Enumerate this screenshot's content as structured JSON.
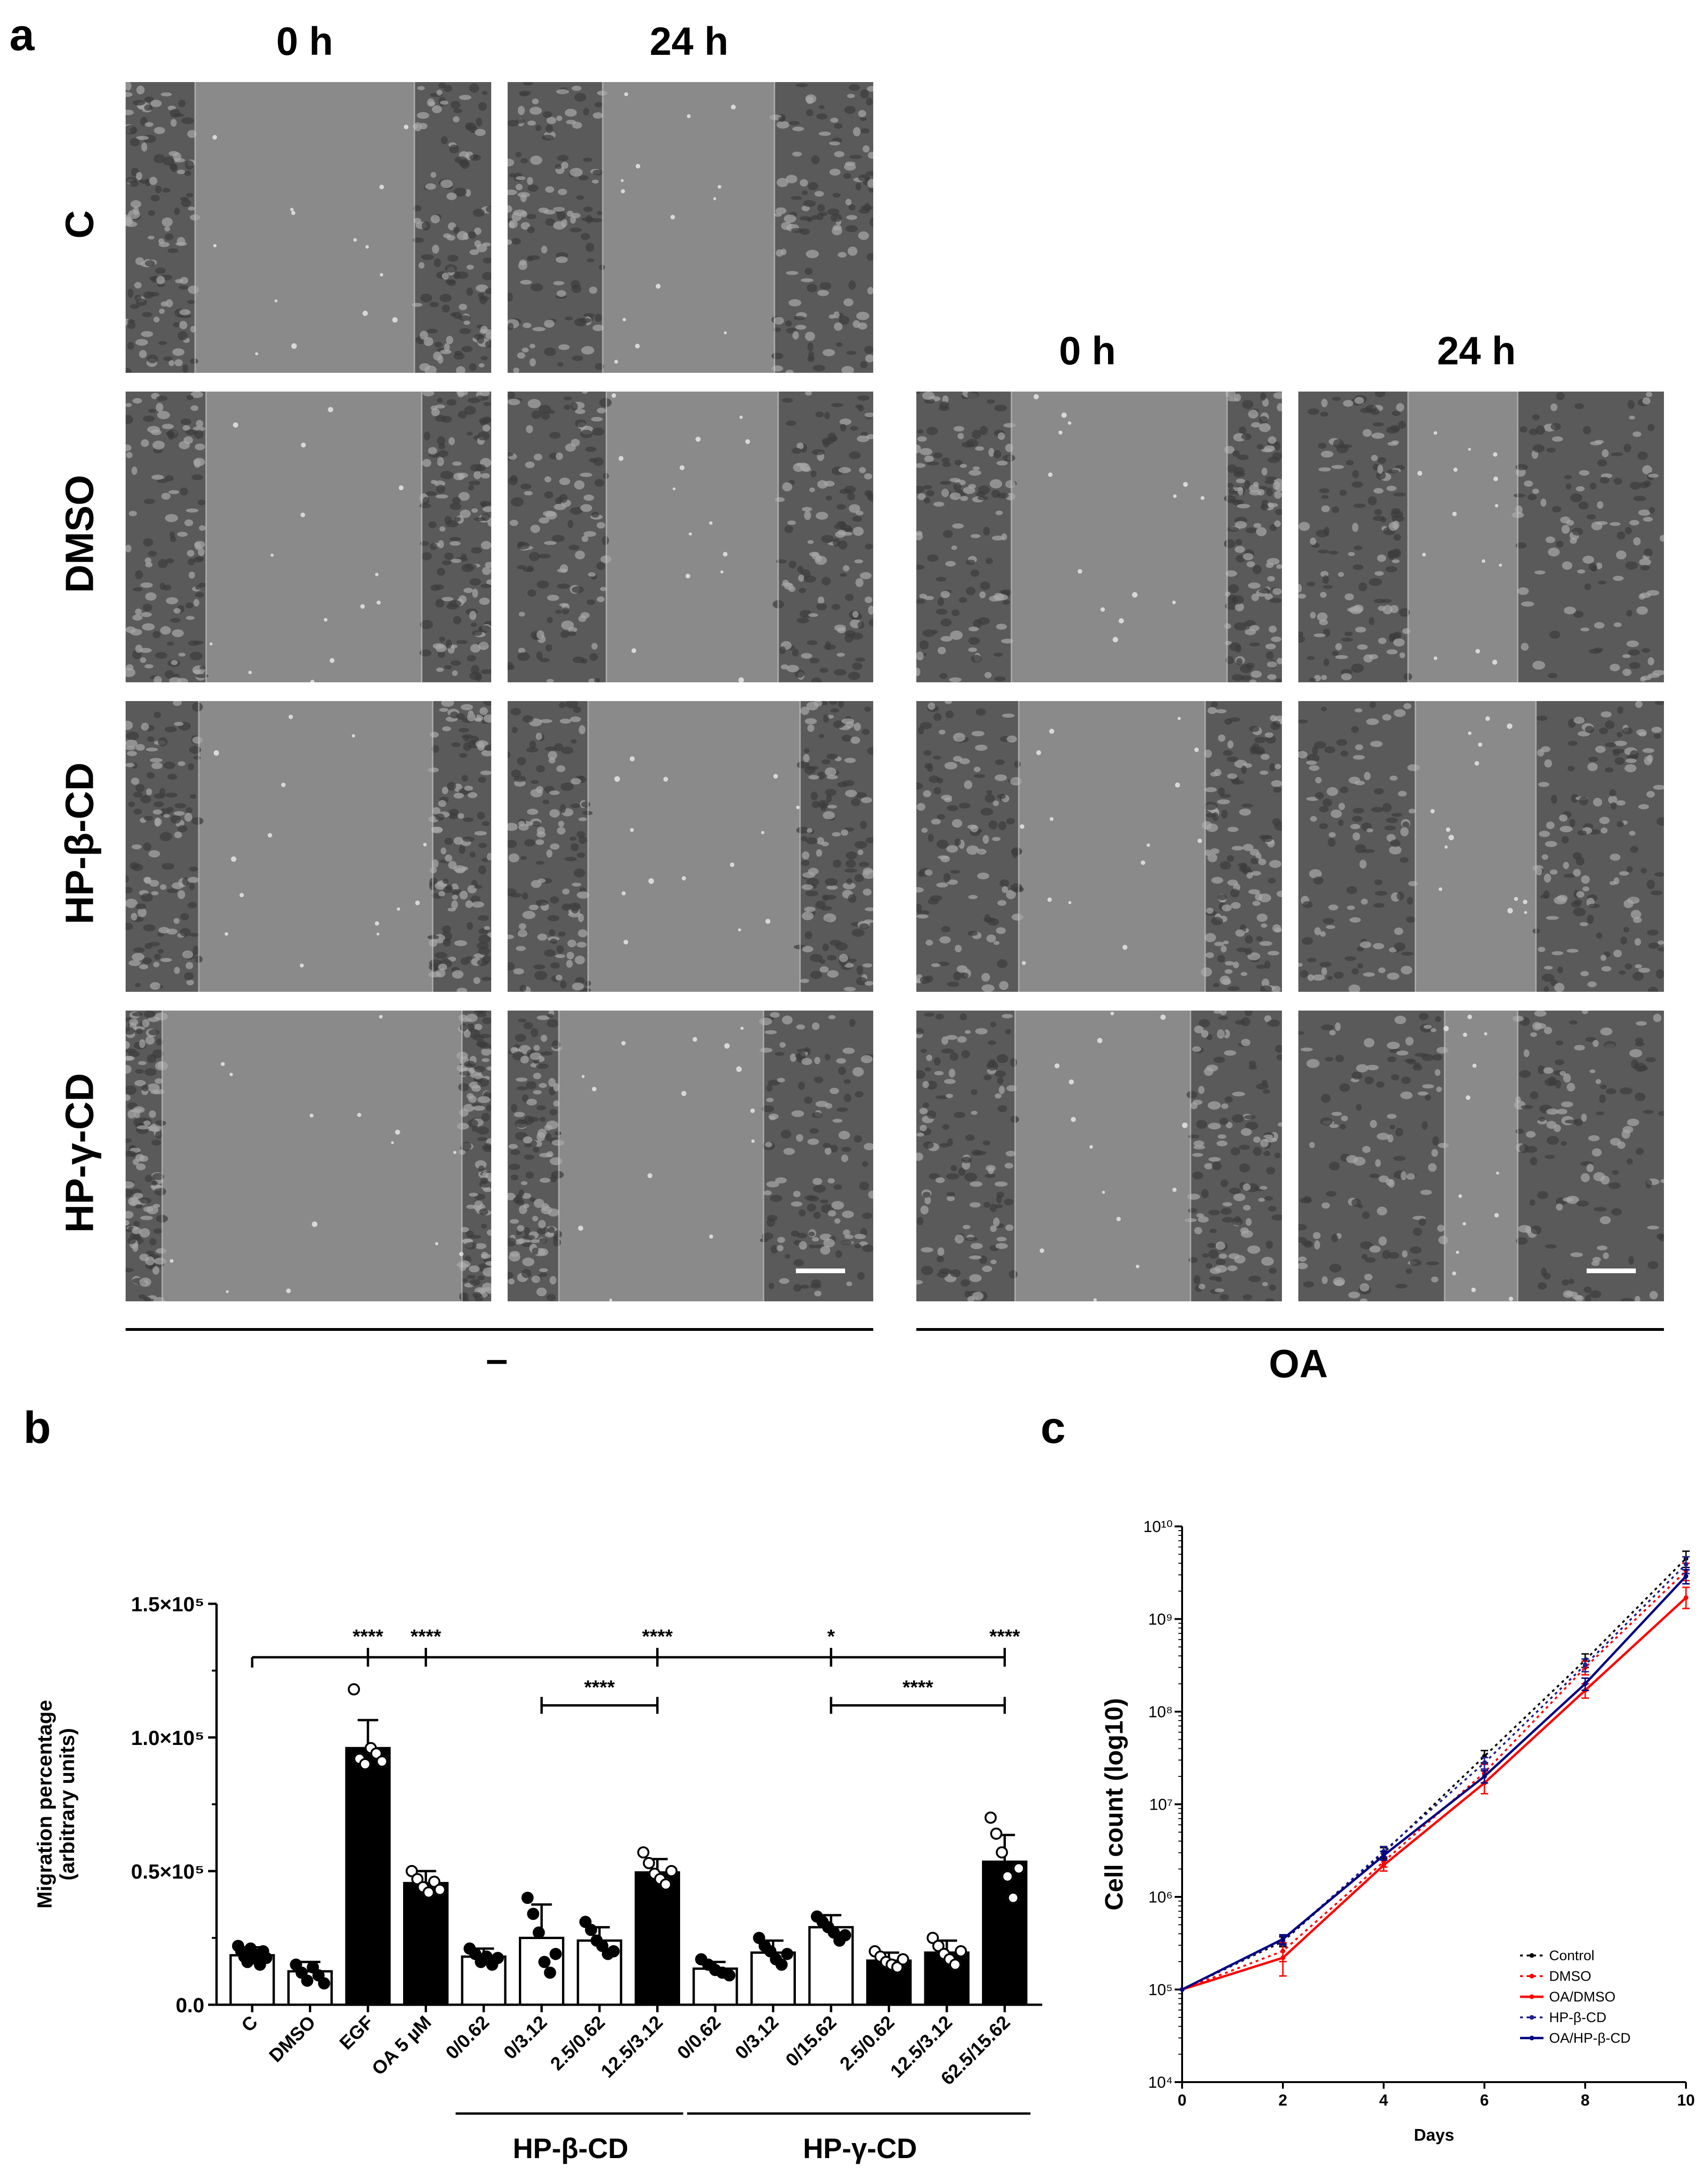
{
  "figure": {
    "panel_a": {
      "letter": "a",
      "left_headers": [
        "0 h",
        "24 h"
      ],
      "right_headers": [
        "0 h",
        "24 h"
      ],
      "row_labels": [
        "C",
        "DMSO",
        "HP-β-CD",
        "HP-γ-CD"
      ],
      "left_group_label": "–",
      "right_group_label": "OA",
      "left_images": [
        {
          "name": "C 0 h",
          "gap_start": 0.19,
          "gap_end": 0.79
        },
        {
          "name": "C 24 h",
          "gap_start": 0.26,
          "gap_end": 0.73
        },
        {
          "name": "DMSO 0 h",
          "gap_start": 0.22,
          "gap_end": 0.81
        },
        {
          "name": "DMSO 24 h",
          "gap_start": 0.27,
          "gap_end": 0.74
        },
        {
          "name": "HP-β-CD 0 h",
          "gap_start": 0.2,
          "gap_end": 0.84
        },
        {
          "name": "HP-β-CD 24 h",
          "gap_start": 0.22,
          "gap_end": 0.8
        },
        {
          "name": "HP-γ-CD 0 h",
          "gap_start": 0.1,
          "gap_end": 0.92
        },
        {
          "name": "HP-γ-CD 24 h",
          "gap_start": 0.14,
          "gap_end": 0.7
        }
      ],
      "right_images": [
        {
          "name": "OA DMSO 0 h",
          "gap_start": 0.26,
          "gap_end": 0.85
        },
        {
          "name": "OA DMSO 24 h",
          "gap_start": 0.3,
          "gap_end": 0.6
        },
        {
          "name": "OA HP-β-CD 0 h",
          "gap_start": 0.28,
          "gap_end": 0.79
        },
        {
          "name": "OA HP-β-CD 24 h",
          "gap_start": 0.32,
          "gap_end": 0.65
        },
        {
          "name": "OA HP-γ-CD 0 h",
          "gap_start": 0.27,
          "gap_end": 0.75
        },
        {
          "name": "OA HP-γ-CD 24 h",
          "gap_start": 0.4,
          "gap_end": 0.6
        }
      ]
    },
    "panel_b": {
      "letter": "b"
    },
    "panel_c": {
      "letter": "c"
    }
  },
  "chart_data": [
    {
      "type": "bar",
      "panel": "b",
      "ylabel": "Migration percentage\n(arbitrary units)",
      "ylim": [
        0,
        150000
      ],
      "yticks": [
        0,
        50000,
        100000,
        150000
      ],
      "yticklabels": [
        "0.0",
        "0.5×10⁵",
        "1.0×10⁵",
        "1.5×10⁵"
      ],
      "categories": [
        "C",
        "DMSO",
        "EGF",
        "OA 5 µM",
        "0/0.62",
        "0/3.12",
        "2.5/0.62",
        "12.5/3.12",
        "0/0.62",
        "0/3.12",
        "0/15.62",
        "2.5/0.62",
        "12.5/3.12",
        "62.5/15.62"
      ],
      "values": [
        18500,
        12500,
        96000,
        45500,
        18000,
        25000,
        24000,
        49500,
        13500,
        19500,
        29000,
        16500,
        19500,
        53500
      ],
      "errors": [
        3000,
        3500,
        10500,
        4500,
        3000,
        12500,
        5000,
        5000,
        2500,
        4500,
        4500,
        3000,
        4500,
        10000
      ],
      "fill": [
        "white",
        "white",
        "black",
        "black",
        "white",
        "white",
        "white",
        "black",
        "white",
        "white",
        "white",
        "black",
        "black",
        "black"
      ],
      "points": [
        [
          22000,
          20000,
          18000,
          16000,
          21000,
          19000,
          17000,
          15000,
          20000,
          17500
        ],
        [
          15000,
          12000,
          9000,
          14000,
          11000,
          8000
        ],
        [
          118000,
          92000,
          90000,
          96000,
          94000,
          91000
        ],
        [
          50000,
          47000,
          44000,
          42000,
          46000,
          43000
        ],
        [
          21000,
          19000,
          16000,
          18000,
          15000,
          17500
        ],
        [
          40000,
          34000,
          27000,
          16000,
          12000,
          19000
        ],
        [
          31000,
          28000,
          24000,
          22000,
          19000,
          20000
        ],
        [
          57000,
          53000,
          49000,
          47000,
          45000,
          50000
        ],
        [
          17000,
          15000,
          13000,
          12000,
          11000
        ],
        [
          25000,
          22000,
          20000,
          17000,
          15000,
          19000
        ],
        [
          33000,
          31000,
          29000,
          27000,
          24000,
          26000
        ],
        [
          20000,
          18000,
          16000,
          15000,
          14000,
          17000
        ],
        [
          25000,
          22000,
          19000,
          17000,
          15000,
          20000
        ],
        [
          70000,
          64000,
          57000,
          48000,
          40000,
          51000
        ]
      ],
      "group_labels": [
        {
          "label": "HP-β-CD",
          "from": 4,
          "to": 7
        },
        {
          "label": "HP-γ-CD",
          "from": 8,
          "to": 13
        }
      ],
      "significance": [
        {
          "type": "main",
          "text": "****",
          "target": 2
        },
        {
          "type": "main",
          "text": "****",
          "target": 3
        },
        {
          "type": "main",
          "text": "****",
          "target": 7
        },
        {
          "type": "main",
          "text": "*",
          "target": 10
        },
        {
          "type": "main",
          "text": "****",
          "target": 13
        },
        {
          "type": "pair",
          "text": "****",
          "from": 5,
          "to": 7,
          "level": 112000
        },
        {
          "type": "pair",
          "text": "****",
          "from": 10,
          "to": 13,
          "level": 112000
        }
      ],
      "main_bracket_level": 130000
    },
    {
      "type": "line",
      "panel": "c",
      "xlabel": "Days",
      "ylabel": "Cell count (log10)",
      "yscale": "log",
      "xlim": [
        0,
        10
      ],
      "ylim": [
        10000,
        10000000000
      ],
      "xticks": [
        0,
        2,
        4,
        6,
        8,
        10
      ],
      "yticks_exp": [
        4,
        5,
        6,
        7,
        8,
        9,
        10
      ],
      "x": [
        0,
        2,
        4,
        6,
        8,
        10
      ],
      "legend_position": "bottom-right",
      "series": [
        {
          "name": "Control",
          "color": "#000000",
          "dash": "dotted",
          "values": [
            100000,
            330000,
            3000000,
            33000000,
            360000000,
            4500000000
          ],
          "errors_up": [
            0,
            40000,
            400000,
            5000000,
            60000000,
            900000000
          ],
          "errors_down": [
            0,
            40000,
            400000,
            5000000,
            60000000,
            900000000
          ]
        },
        {
          "name": "DMSO",
          "color": "#ff0000",
          "dash": "dotted",
          "values": [
            100000,
            260000,
            2400000,
            22000000,
            300000000,
            3300000000
          ],
          "errors_up": [
            0,
            60000,
            300000,
            5000000,
            50000000,
            700000000
          ],
          "errors_down": [
            0,
            60000,
            300000,
            5000000,
            50000000,
            700000000
          ]
        },
        {
          "name": "OA/DMSO",
          "color": "#ff0000",
          "dash": "solid",
          "values": [
            100000,
            220000,
            2200000,
            17000000,
            170000000,
            1700000000
          ],
          "errors_up": [
            0,
            90000,
            300000,
            6000000,
            30000000,
            500000000
          ],
          "errors_down": [
            0,
            80000,
            300000,
            4000000,
            30000000,
            400000000
          ]
        },
        {
          "name": "HP-β-CD",
          "color": "#1f1f8f",
          "dash": "dotted",
          "values": [
            100000,
            340000,
            3100000,
            28000000,
            320000000,
            3900000000
          ],
          "errors_up": [
            0,
            40000,
            400000,
            4000000,
            50000000,
            800000000
          ],
          "errors_down": [
            0,
            40000,
            400000,
            4000000,
            50000000,
            800000000
          ]
        },
        {
          "name": "OA/HP-β-CD",
          "color": "#000080",
          "dash": "solid",
          "values": [
            100000,
            350000,
            2800000,
            20000000,
            200000000,
            2900000000
          ],
          "errors_up": [
            0,
            40000,
            300000,
            3000000,
            30000000,
            500000000
          ],
          "errors_down": [
            0,
            40000,
            300000,
            3000000,
            30000000,
            500000000
          ]
        }
      ]
    }
  ]
}
